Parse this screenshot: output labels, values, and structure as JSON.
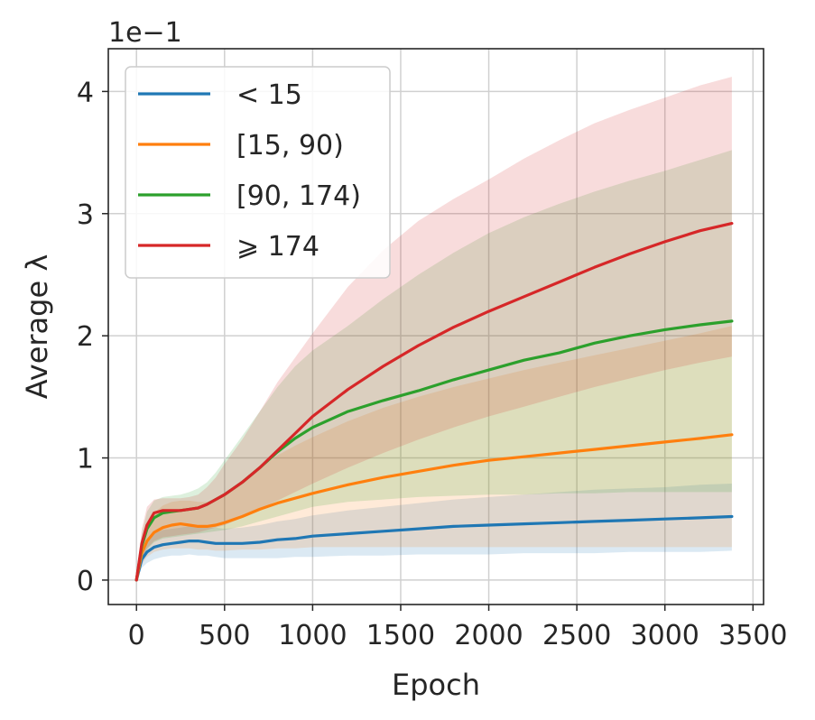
{
  "chart_data": {
    "type": "line",
    "title": "",
    "xlabel": "Epoch",
    "ylabel": "Average λ",
    "scale_label": "1e−1",
    "xlim": [
      -160,
      3560
    ],
    "ylim": [
      -0.2,
      4.35
    ],
    "xticks": [
      0,
      500,
      1000,
      1500,
      2000,
      2500,
      3000,
      3500
    ],
    "yticks": [
      0,
      1,
      2,
      3,
      4
    ],
    "grid": true,
    "legend_position": "upper-left",
    "x": [
      0,
      30,
      60,
      100,
      150,
      200,
      250,
      300,
      350,
      400,
      450,
      500,
      600,
      700,
      800,
      900,
      1000,
      1200,
      1400,
      1600,
      1800,
      2000,
      2200,
      2400,
      2600,
      2800,
      3000,
      3200,
      3380
    ],
    "series": [
      {
        "name": "< 15",
        "color": "#1f77b4",
        "values": [
          0,
          0.17,
          0.23,
          0.27,
          0.29,
          0.3,
          0.31,
          0.32,
          0.32,
          0.31,
          0.3,
          0.3,
          0.3,
          0.31,
          0.33,
          0.34,
          0.36,
          0.38,
          0.4,
          0.42,
          0.44,
          0.45,
          0.46,
          0.47,
          0.48,
          0.49,
          0.5,
          0.51,
          0.52
        ],
        "lower": [
          0,
          0.1,
          0.14,
          0.17,
          0.19,
          0.2,
          0.2,
          0.21,
          0.2,
          0.2,
          0.19,
          0.18,
          0.18,
          0.18,
          0.18,
          0.19,
          0.19,
          0.2,
          0.2,
          0.21,
          0.21,
          0.21,
          0.22,
          0.22,
          0.22,
          0.23,
          0.23,
          0.23,
          0.24
        ],
        "upper": [
          0,
          0.25,
          0.33,
          0.38,
          0.41,
          0.42,
          0.43,
          0.44,
          0.44,
          0.43,
          0.43,
          0.42,
          0.43,
          0.45,
          0.48,
          0.5,
          0.53,
          0.57,
          0.6,
          0.63,
          0.66,
          0.68,
          0.7,
          0.72,
          0.74,
          0.75,
          0.76,
          0.78,
          0.79
        ]
      },
      {
        "name": "[15, 90)",
        "color": "#ff7f0e",
        "values": [
          0,
          0.22,
          0.32,
          0.39,
          0.43,
          0.45,
          0.46,
          0.45,
          0.44,
          0.44,
          0.45,
          0.47,
          0.52,
          0.58,
          0.63,
          0.67,
          0.71,
          0.78,
          0.84,
          0.89,
          0.94,
          0.98,
          1.01,
          1.04,
          1.07,
          1.1,
          1.13,
          1.16,
          1.19
        ],
        "lower": [
          0,
          0.13,
          0.19,
          0.23,
          0.25,
          0.26,
          0.26,
          0.26,
          0.25,
          0.25,
          0.24,
          0.24,
          0.25,
          0.25,
          0.26,
          0.26,
          0.27,
          0.27,
          0.27,
          0.27,
          0.27,
          0.27,
          0.27,
          0.27,
          0.27,
          0.27,
          0.27,
          0.27,
          0.27
        ],
        "upper": [
          0,
          0.3,
          0.45,
          0.55,
          0.61,
          0.64,
          0.65,
          0.65,
          0.64,
          0.64,
          0.66,
          0.7,
          0.8,
          0.92,
          1.02,
          1.1,
          1.17,
          1.3,
          1.41,
          1.5,
          1.58,
          1.65,
          1.72,
          1.78,
          1.84,
          1.9,
          1.96,
          2.02,
          2.08
        ]
      },
      {
        "name": "[90, 174)",
        "color": "#2ca02c",
        "values": [
          0,
          0.28,
          0.42,
          0.51,
          0.55,
          0.56,
          0.57,
          0.58,
          0.59,
          0.62,
          0.66,
          0.7,
          0.8,
          0.92,
          1.05,
          1.16,
          1.25,
          1.38,
          1.47,
          1.55,
          1.64,
          1.72,
          1.8,
          1.86,
          1.94,
          2,
          2.05,
          2.09,
          2.12
        ],
        "lower": [
          0,
          0.16,
          0.25,
          0.31,
          0.34,
          0.35,
          0.36,
          0.37,
          0.38,
          0.39,
          0.4,
          0.41,
          0.44,
          0.48,
          0.52,
          0.56,
          0.6,
          0.64,
          0.66,
          0.68,
          0.69,
          0.7,
          0.7,
          0.71,
          0.71,
          0.72,
          0.72,
          0.72,
          0.72
        ],
        "upper": [
          0,
          0.38,
          0.56,
          0.65,
          0.68,
          0.69,
          0.7,
          0.72,
          0.75,
          0.8,
          0.88,
          0.98,
          1.18,
          1.38,
          1.58,
          1.75,
          1.88,
          2.08,
          2.3,
          2.5,
          2.68,
          2.84,
          2.97,
          3.08,
          3.18,
          3.27,
          3.35,
          3.44,
          3.52
        ]
      },
      {
        "name": "⩾ 174",
        "color": "#d62728",
        "values": [
          0,
          0.3,
          0.45,
          0.55,
          0.57,
          0.57,
          0.57,
          0.58,
          0.59,
          0.62,
          0.66,
          0.7,
          0.8,
          0.92,
          1.06,
          1.2,
          1.34,
          1.56,
          1.75,
          1.92,
          2.07,
          2.2,
          2.32,
          2.44,
          2.56,
          2.67,
          2.77,
          2.86,
          2.92
        ],
        "lower": [
          0,
          0.17,
          0.26,
          0.32,
          0.35,
          0.36,
          0.37,
          0.38,
          0.39,
          0.41,
          0.43,
          0.45,
          0.51,
          0.58,
          0.65,
          0.72,
          0.79,
          0.92,
          1.04,
          1.15,
          1.25,
          1.34,
          1.42,
          1.5,
          1.58,
          1.65,
          1.72,
          1.78,
          1.83
        ],
        "upper": [
          0,
          0.42,
          0.6,
          0.66,
          0.67,
          0.67,
          0.67,
          0.68,
          0.7,
          0.76,
          0.84,
          0.95,
          1.15,
          1.38,
          1.62,
          1.82,
          2.02,
          2.4,
          2.7,
          2.94,
          3.12,
          3.28,
          3.45,
          3.6,
          3.74,
          3.85,
          3.95,
          4.05,
          4.12
        ]
      }
    ]
  }
}
